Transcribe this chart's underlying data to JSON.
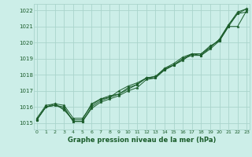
{
  "bg_color": "#cceee8",
  "grid_color": "#aad4cc",
  "line_color": "#1a5c2a",
  "marker_color": "#1a5c2a",
  "xlabel": "Graphe pression niveau de la mer (hPa)",
  "xlabel_color": "#1a5c2a",
  "ylabel_ticks": [
    1015,
    1016,
    1017,
    1018,
    1019,
    1020,
    1021,
    1022
  ],
  "xticks": [
    0,
    1,
    2,
    3,
    4,
    5,
    6,
    7,
    8,
    9,
    10,
    11,
    12,
    13,
    14,
    15,
    16,
    17,
    18,
    19,
    20,
    21,
    22,
    23
  ],
  "xlim": [
    -0.3,
    23.3
  ],
  "ylim": [
    1014.6,
    1022.4
  ],
  "series": [
    [
      1015.2,
      1016.0,
      1016.1,
      1016.0,
      1015.1,
      1015.1,
      1015.9,
      1016.3,
      1016.5,
      1016.7,
      1017.0,
      1017.2,
      1017.7,
      1017.8,
      1018.3,
      1018.6,
      1019.0,
      1019.2,
      1019.2,
      1019.6,
      1020.1,
      1021.0,
      1021.8,
      1021.9
    ],
    [
      1015.2,
      1016.0,
      1016.2,
      1015.8,
      1015.2,
      1015.2,
      1016.2,
      1016.5,
      1016.6,
      1017.0,
      1017.3,
      1017.5,
      1017.8,
      1017.9,
      1018.3,
      1018.6,
      1018.9,
      1019.3,
      1019.2,
      1019.7,
      1020.2,
      1021.1,
      1021.8,
      1022.1
    ],
    [
      1015.2,
      1016.0,
      1016.1,
      1015.9,
      1015.1,
      1015.1,
      1016.0,
      1016.4,
      1016.6,
      1016.8,
      1017.1,
      1017.4,
      1017.8,
      1017.8,
      1018.4,
      1018.7,
      1019.1,
      1019.3,
      1019.3,
      1019.8,
      1020.1,
      1021.0,
      1021.0,
      1022.0
    ],
    [
      1015.3,
      1016.1,
      1016.2,
      1016.1,
      1015.3,
      1015.3,
      1016.1,
      1016.5,
      1016.7,
      1016.8,
      1017.2,
      1017.4,
      1017.8,
      1017.9,
      1018.4,
      1018.6,
      1019.0,
      1019.3,
      1019.3,
      1019.7,
      1020.2,
      1021.1,
      1021.9,
      1022.1
    ]
  ],
  "title_fontsize": 5.5,
  "xtick_fontsize": 4.5,
  "ytick_fontsize": 5.0,
  "xlabel_fontsize": 6.0,
  "linewidth": 0.7,
  "markersize": 2.5
}
